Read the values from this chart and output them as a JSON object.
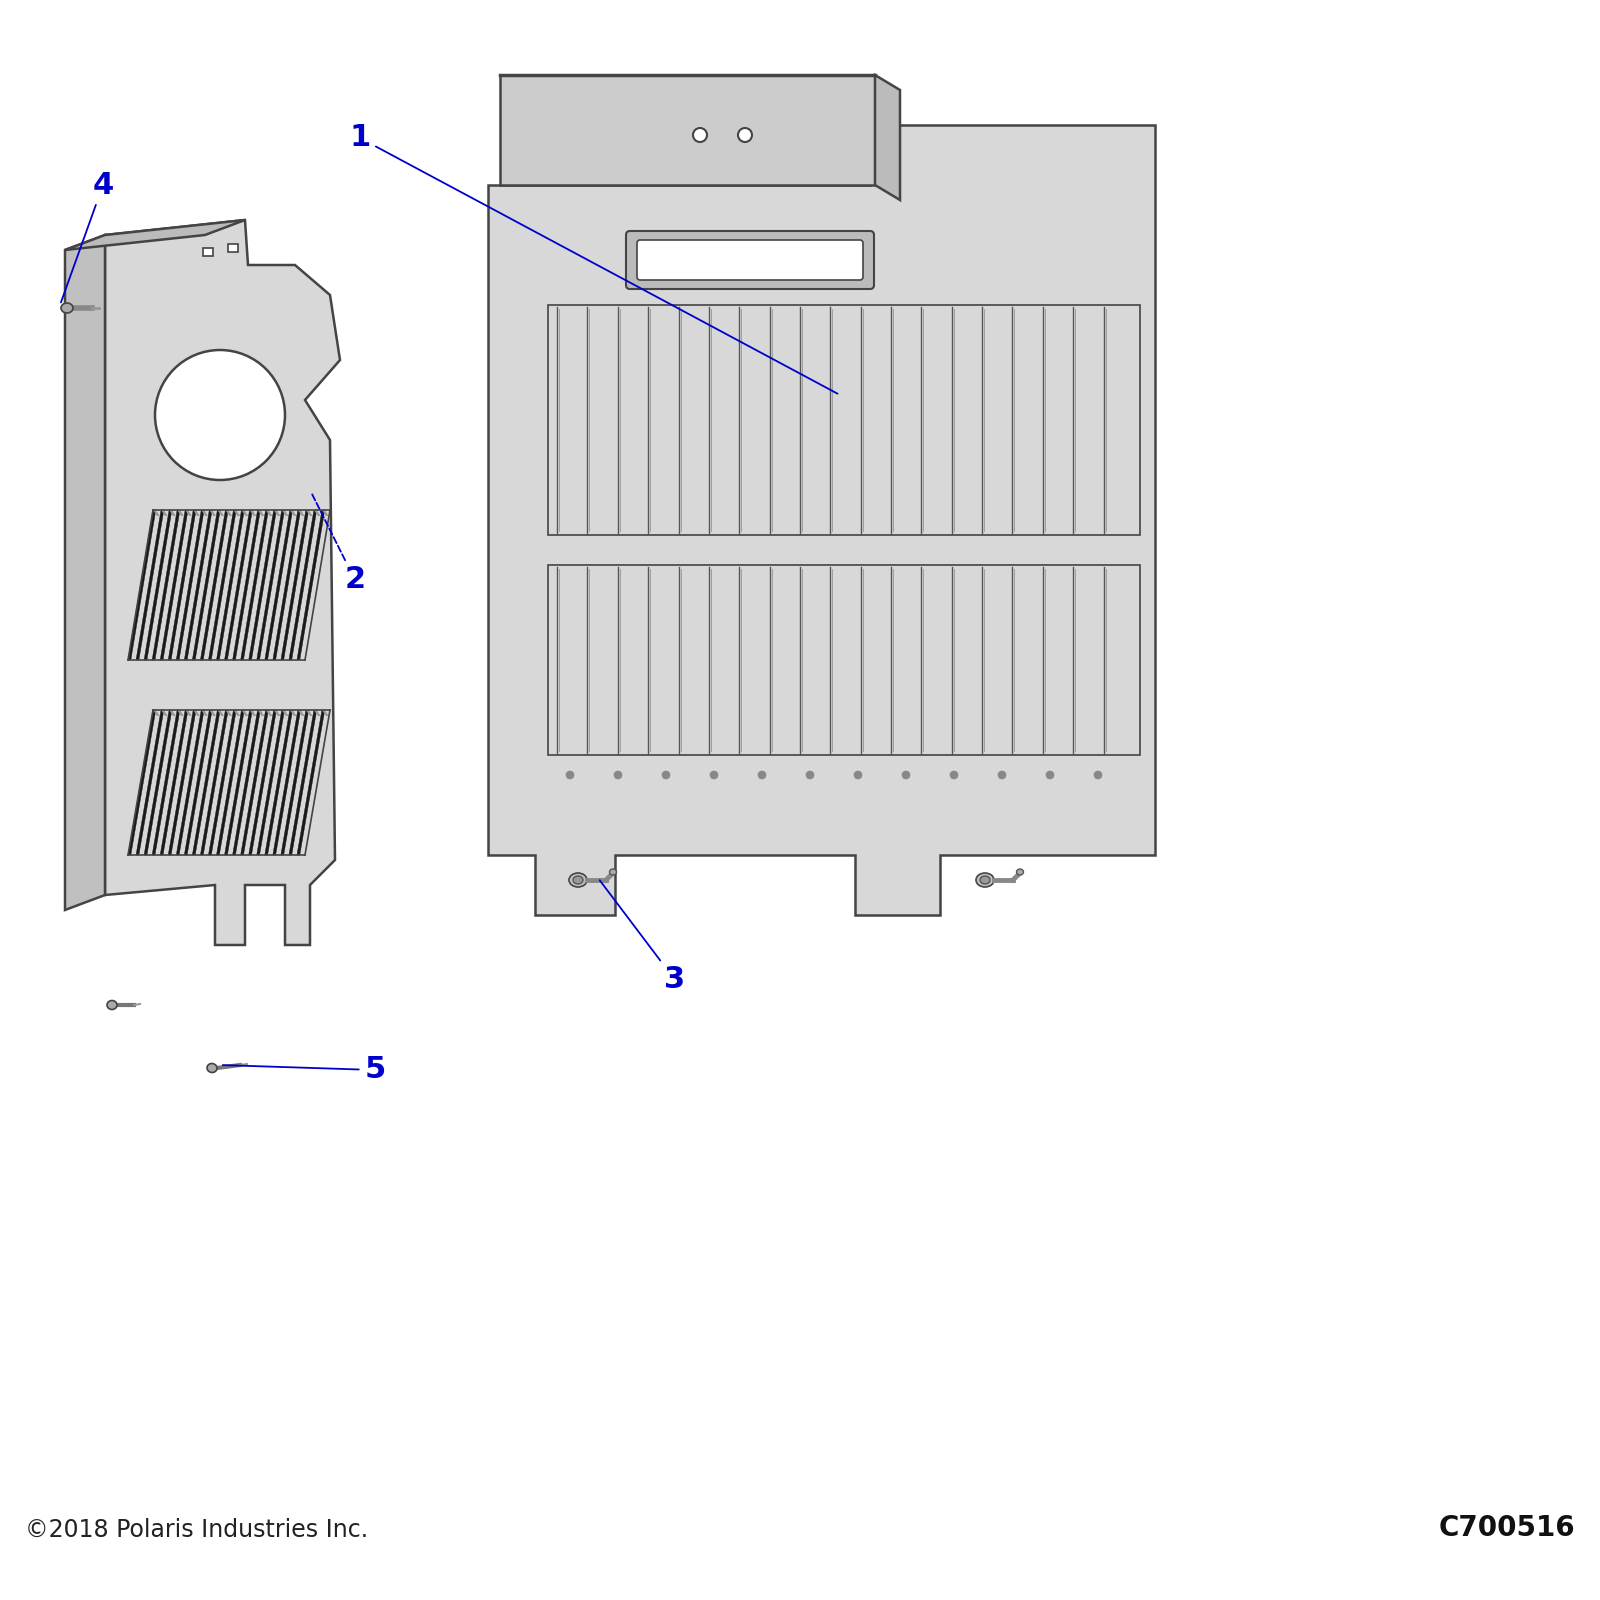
{
  "bg_color": "#ffffff",
  "title_left": "©2018 Polaris Industries Inc.",
  "title_right": "C700516",
  "footer_fontsize": 17,
  "label_color": "#0000cc",
  "label_fontsize": 22,
  "part_color": "#d8d8d8",
  "part_color2": "#e4e4e4",
  "part_edge_color": "#444444",
  "part_color_top": "#cccccc"
}
